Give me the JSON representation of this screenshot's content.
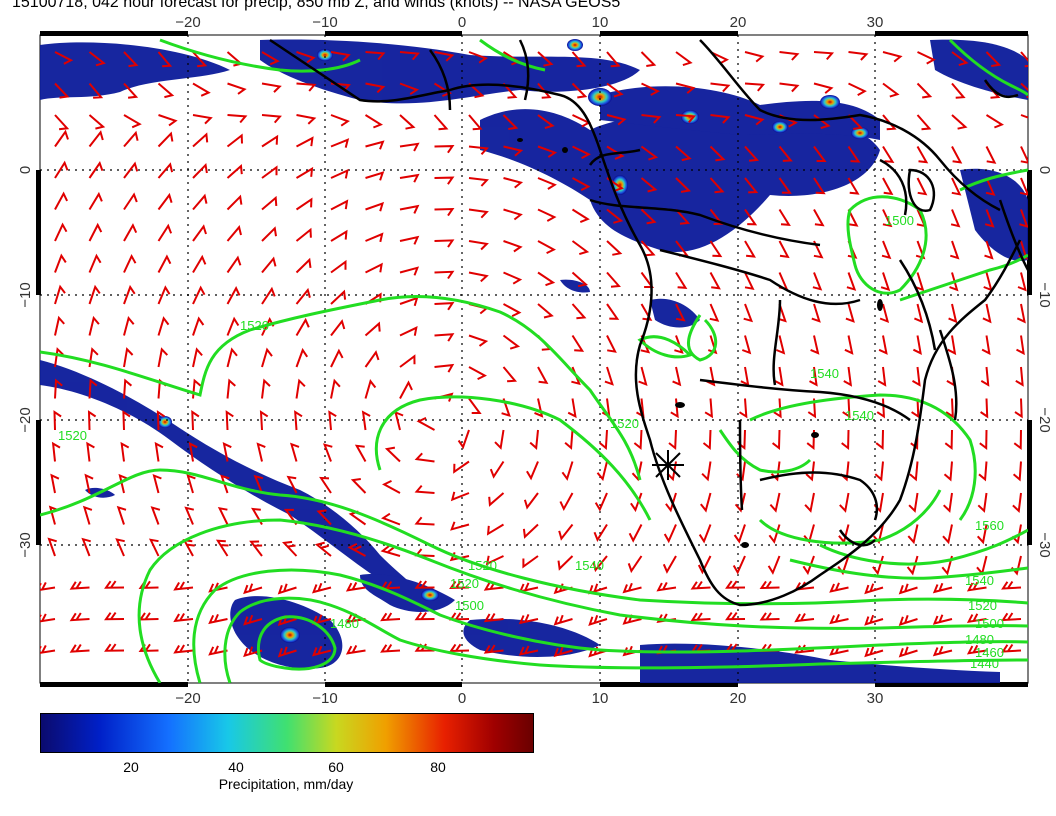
{
  "title": "15100718, 042 hour forecast for precip, 850 mb Z, and winds (knots) -- NASA GEOS5",
  "map": {
    "lon_range": [
      -30,
      42
    ],
    "lat_range": [
      -40,
      11
    ],
    "lon_ticks_top": [
      "−20",
      "−10",
      "0",
      "10",
      "20",
      "30"
    ],
    "lon_ticks_bottom": [
      "−20",
      "−10",
      "0",
      "10",
      "20",
      "30"
    ],
    "lat_ticks_left": [
      "0",
      "−10",
      "−20",
      "−30"
    ],
    "lat_ticks_right": [
      "0",
      "−10",
      "−20",
      "−30"
    ],
    "contour_labels": [
      "1520",
      "1520",
      "1520",
      "1520",
      "1540",
      "1520",
      "1480",
      "1500",
      "1560",
      "1540",
      "1540",
      "1520",
      "1500",
      "1480",
      "1460",
      "1440",
      "1500",
      "1540"
    ],
    "colors": {
      "contour": "#22dd22",
      "wind_barb": "#e00000",
      "coast": "#000000",
      "grid": "#000000"
    }
  },
  "colorbar": {
    "ticks": [
      "20",
      "40",
      "60",
      "80"
    ],
    "label": "Precipitation, mm/day",
    "range": [
      0,
      100
    ]
  }
}
